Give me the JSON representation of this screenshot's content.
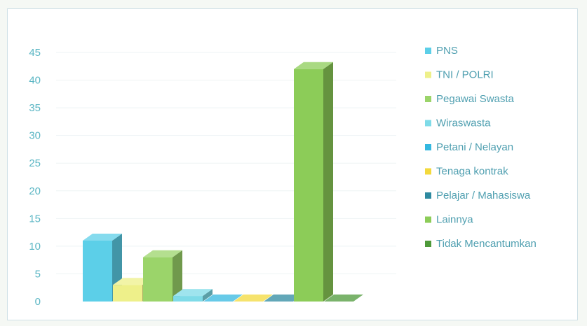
{
  "chart_data": {
    "type": "bar",
    "title": "",
    "xlabel": "",
    "ylabel": "",
    "ylim": [
      0,
      45
    ],
    "yticks": [
      "0",
      "5",
      "10",
      "15",
      "20",
      "25",
      "30",
      "35",
      "40",
      "45"
    ],
    "grid": true,
    "legend_position": "right",
    "categories": [
      "PNS",
      "TNI / POLRI",
      "Pegawai Swasta",
      "Wiraswasta",
      "Petani / Nelayan",
      "Tenaga kontrak",
      "Pelajar / Mahasiswa",
      "Lainnya",
      "Tidak Mencantumkan"
    ],
    "values": [
      11,
      3,
      8,
      1,
      0,
      0,
      0,
      42,
      0
    ],
    "colors": [
      "#5ccfe8",
      "#eef08a",
      "#9bd46a",
      "#7fdbe8",
      "#34b8e0",
      "#f3d93c",
      "#2e8aa0",
      "#8ccc58",
      "#4e9a3a"
    ]
  }
}
